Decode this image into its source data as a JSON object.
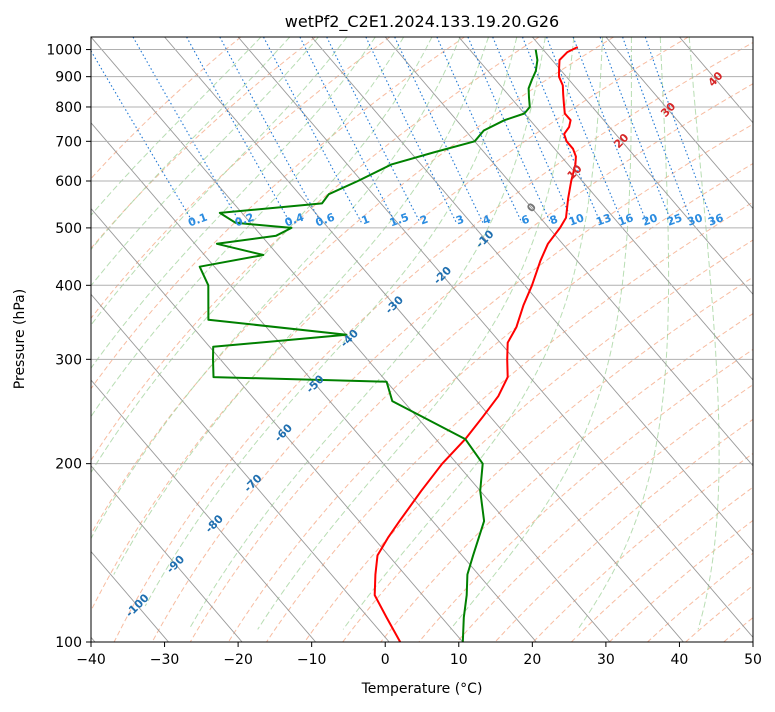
{
  "chart_data": {
    "type": "line",
    "subtype": "skew-t log-p diagram",
    "title": "wetPf2_C2E1.2024.133.19.20.G26",
    "xlabel": "Temperature (°C)",
    "ylabel": "Pressure (hPa)",
    "xlim": [
      -40,
      50
    ],
    "ylim": [
      1050,
      100
    ],
    "y_scale": "log",
    "grid": true,
    "x_ticks": [
      "−40",
      "−30",
      "−20",
      "−10",
      "0",
      "10",
      "20",
      "30",
      "40",
      "50"
    ],
    "y_ticks": [
      "100",
      "200",
      "300",
      "400",
      "500",
      "600",
      "700",
      "800",
      "900",
      "1000"
    ],
    "y_tick_values": [
      100,
      200,
      300,
      400,
      500,
      600,
      700,
      800,
      900,
      1000
    ],
    "isotherm_labels": [
      "-100",
      "-90",
      "-80",
      "-70",
      "-60",
      "-50",
      "-40",
      "-30",
      "-20",
      "-10",
      "0",
      "10",
      "20",
      "30",
      "40"
    ],
    "mixing_ratio_labels": [
      "0.1",
      "0.2",
      "0.4",
      "0.6",
      "1",
      "1.5",
      "2",
      "3",
      "4",
      "6",
      "8",
      "10",
      "13",
      "16",
      "20",
      "25",
      "30",
      "36"
    ],
    "series": [
      {
        "role": "temperature",
        "color": "#ff0000",
        "points": [
          {
            "p": 1010,
            "t": 25.0
          },
          {
            "p": 990,
            "t": 23.0
          },
          {
            "p": 960,
            "t": 21.0
          },
          {
            "p": 930,
            "t": 20.0
          },
          {
            "p": 900,
            "t": 19.0
          },
          {
            "p": 870,
            "t": 18.5
          },
          {
            "p": 840,
            "t": 17.5
          },
          {
            "p": 810,
            "t": 16.5
          },
          {
            "p": 780,
            "t": 15.5
          },
          {
            "p": 760,
            "t": 15.5
          },
          {
            "p": 740,
            "t": 14.5
          },
          {
            "p": 720,
            "t": 13.0
          },
          {
            "p": 700,
            "t": 12.5
          },
          {
            "p": 680,
            "t": 12.5
          },
          {
            "p": 660,
            "t": 12.0
          },
          {
            "p": 640,
            "t": 11.0
          },
          {
            "p": 600,
            "t": 8.5
          },
          {
            "p": 560,
            "t": 6.0
          },
          {
            "p": 520,
            "t": 3.5
          },
          {
            "p": 500,
            "t": 1.5
          },
          {
            "p": 470,
            "t": -2.0
          },
          {
            "p": 440,
            "t": -5.0
          },
          {
            "p": 400,
            "t": -9.0
          },
          {
            "p": 370,
            "t": -12.5
          },
          {
            "p": 340,
            "t": -16.0
          },
          {
            "p": 320,
            "t": -19.0
          },
          {
            "p": 300,
            "t": -21.0
          },
          {
            "p": 280,
            "t": -23.0
          },
          {
            "p": 260,
            "t": -26.5
          },
          {
            "p": 240,
            "t": -31.0
          },
          {
            "p": 220,
            "t": -36.0
          },
          {
            "p": 200,
            "t": -42.0
          },
          {
            "p": 180,
            "t": -48.0
          },
          {
            "p": 160,
            "t": -54.5
          },
          {
            "p": 150,
            "t": -58.0
          },
          {
            "p": 140,
            "t": -61.5
          },
          {
            "p": 130,
            "t": -64.0
          },
          {
            "p": 120,
            "t": -66.5
          },
          {
            "p": 110,
            "t": -67.5
          },
          {
            "p": 100,
            "t": -68.5
          }
        ]
      },
      {
        "role": "dewpoint",
        "color": "#008000",
        "points": [
          {
            "p": 1000,
            "t": 19.0
          },
          {
            "p": 960,
            "t": 18.0
          },
          {
            "p": 920,
            "t": 16.5
          },
          {
            "p": 890,
            "t": 15.0
          },
          {
            "p": 860,
            "t": 13.5
          },
          {
            "p": 830,
            "t": 12.5
          },
          {
            "p": 800,
            "t": 11.5
          },
          {
            "p": 780,
            "t": 10.0
          },
          {
            "p": 760,
            "t": 6.5
          },
          {
            "p": 730,
            "t": 2.5
          },
          {
            "p": 700,
            "t": 0.0
          },
          {
            "p": 670,
            "t": -7.0
          },
          {
            "p": 640,
            "t": -14.0
          },
          {
            "p": 600,
            "t": -20.5
          },
          {
            "p": 570,
            "t": -26.0
          },
          {
            "p": 550,
            "t": -28.0
          },
          {
            "p": 530,
            "t": -43.0
          },
          {
            "p": 510,
            "t": -42.0
          },
          {
            "p": 500,
            "t": -35.0
          },
          {
            "p": 485,
            "t": -38.0
          },
          {
            "p": 470,
            "t": -47.0
          },
          {
            "p": 450,
            "t": -42.0
          },
          {
            "p": 430,
            "t": -52.0
          },
          {
            "p": 400,
            "t": -53.0
          },
          {
            "p": 350,
            "t": -57.0
          },
          {
            "p": 330,
            "t": -40.0
          },
          {
            "p": 315,
            "t": -59.5
          },
          {
            "p": 300,
            "t": -61.0
          },
          {
            "p": 280,
            "t": -63.0
          },
          {
            "p": 275,
            "t": -40.0
          },
          {
            "p": 255,
            "t": -41.5
          },
          {
            "p": 220,
            "t": -36.0
          },
          {
            "p": 200,
            "t": -36.5
          },
          {
            "p": 180,
            "t": -40.0
          },
          {
            "p": 160,
            "t": -43.0
          },
          {
            "p": 140,
            "t": -48.5
          },
          {
            "p": 130,
            "t": -51.5
          },
          {
            "p": 120,
            "t": -54.0
          },
          {
            "p": 110,
            "t": -57.0
          },
          {
            "p": 100,
            "t": -60.0
          }
        ]
      }
    ]
  }
}
